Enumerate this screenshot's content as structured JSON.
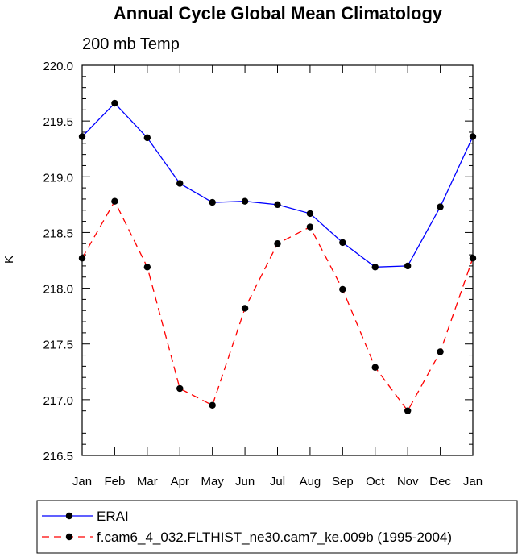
{
  "chart_data": {
    "type": "line",
    "title": "Annual Cycle Global Mean Climatology",
    "subtitle": "200 mb Temp",
    "xlabel": "",
    "ylabel": "K",
    "categories": [
      "Jan",
      "Feb",
      "Mar",
      "Apr",
      "May",
      "Jun",
      "Jul",
      "Aug",
      "Sep",
      "Oct",
      "Nov",
      "Dec",
      "Jan"
    ],
    "ylim": [
      216.5,
      220.0
    ],
    "yticks": [
      "216.5",
      "217.0",
      "217.5",
      "218.0",
      "218.5",
      "219.0",
      "219.5",
      "220.0"
    ],
    "grid": false,
    "legend_position": "bottom",
    "series": [
      {
        "name": "ERAI",
        "color": "#0000ff",
        "dash": "solid",
        "values": [
          219.36,
          219.66,
          219.35,
          218.94,
          218.77,
          218.78,
          218.75,
          218.67,
          218.41,
          218.19,
          218.2,
          218.73,
          219.36
        ]
      },
      {
        "name": "f.cam6_4_032.FLTHIST_ne30.cam7_ke.009b (1995-2004)",
        "color": "#ff0000",
        "dash": "dashed",
        "values": [
          218.27,
          218.78,
          218.19,
          217.1,
          216.95,
          217.82,
          218.4,
          218.55,
          217.99,
          217.29,
          216.9,
          217.43,
          218.27
        ]
      }
    ]
  }
}
